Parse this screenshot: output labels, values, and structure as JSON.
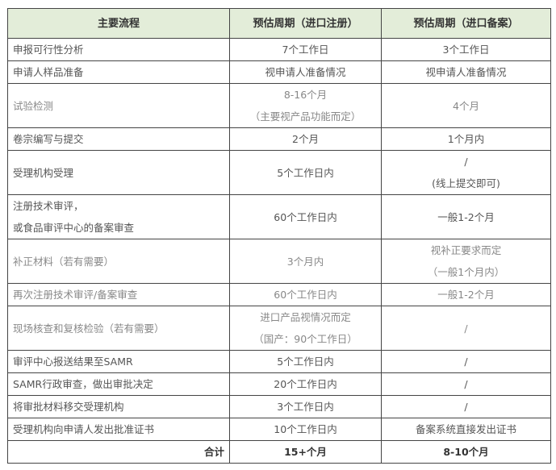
{
  "header": [
    "主要流程",
    "预估周期（进口注册）",
    "预估周期（进口备案）"
  ],
  "header_bg": "#e3edd9",
  "rows": [
    {
      "step": [
        "申报可行性分析"
      ],
      "reg": [
        "7个工作日"
      ],
      "rec": [
        "3个工作日"
      ]
    },
    {
      "step": [
        "申请人样品准备"
      ],
      "reg": [
        "视申请人准备情况"
      ],
      "rec": [
        "视申请人准备情况"
      ]
    },
    {
      "step": [
        "试验检测"
      ],
      "reg": [
        "8-16个月",
        "（主要视产品功能而定）"
      ],
      "rec": [
        "4个月"
      ]
    },
    {
      "step": [
        "卷宗编写与提交"
      ],
      "reg": [
        "2个月"
      ],
      "rec": [
        "1个月内"
      ]
    },
    {
      "step": [
        "受理机构受理"
      ],
      "reg": [
        "5个工作日内"
      ],
      "rec": [
        "/",
        "(线上提交即可)"
      ]
    },
    {
      "step": [
        "注册技术审评，",
        "或食品审评中心的备案审查"
      ],
      "reg": [
        "60个工作日内"
      ],
      "rec": [
        "一般1-2个月"
      ]
    },
    {
      "step": [
        "补正材料（若有需要）"
      ],
      "reg": [
        "3个月内"
      ],
      "rec": [
        "视补正要求而定",
        "（一般1个月内）"
      ]
    },
    {
      "step": [
        "再次注册技术审评/备案审查"
      ],
      "reg": [
        "60个工作日内"
      ],
      "rec": [
        "一般1-2个月"
      ]
    },
    {
      "step": [
        "现场核查和复核检验（若有需要）"
      ],
      "reg": [
        "进口产品视情况而定",
        "（国产：90个工作日）"
      ],
      "rec": [
        "/"
      ]
    },
    {
      "step": [
        "审评中心报送结果至SAMR"
      ],
      "reg": [
        "5个工作日内"
      ],
      "rec": [
        "/"
      ]
    },
    {
      "step": [
        "SAMR行政审查，做出审批决定"
      ],
      "reg": [
        "20个工作日内"
      ],
      "rec": [
        "/"
      ]
    },
    {
      "step": [
        "将审批材料移交受理机构"
      ],
      "reg": [
        "3个工作日内"
      ],
      "rec": [
        "/"
      ]
    },
    {
      "step": [
        "受理机构向申请人发出批准证书"
      ],
      "reg": [
        "10个工作日内"
      ],
      "rec": [
        "备案系统直接发出证书"
      ]
    }
  ],
  "total": {
    "label": "合计",
    "reg": "15+个月",
    "rec": "8-10个月"
  }
}
